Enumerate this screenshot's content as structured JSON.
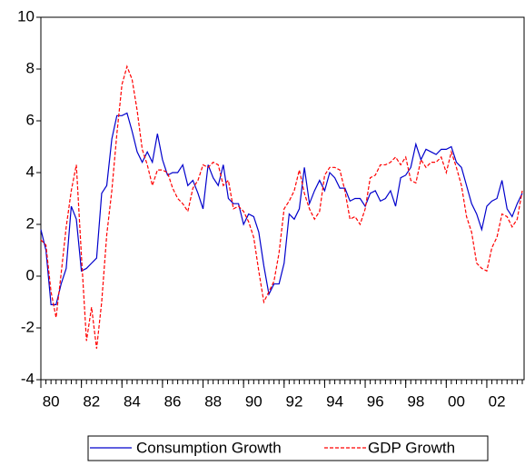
{
  "chart_data": {
    "type": "line",
    "x": [
      1980,
      1980.25,
      1980.5,
      1980.75,
      1981,
      1981.25,
      1981.5,
      1981.75,
      1982,
      1982.25,
      1982.5,
      1982.75,
      1983,
      1983.25,
      1983.5,
      1983.75,
      1984,
      1984.25,
      1984.5,
      1984.75,
      1985,
      1985.25,
      1985.5,
      1985.75,
      1986,
      1986.25,
      1986.5,
      1986.75,
      1987,
      1987.25,
      1987.5,
      1987.75,
      1988,
      1988.25,
      1988.5,
      1988.75,
      1989,
      1989.25,
      1989.5,
      1989.75,
      1990,
      1990.25,
      1990.5,
      1990.75,
      1991,
      1991.25,
      1991.5,
      1991.75,
      1992,
      1992.25,
      1992.5,
      1992.75,
      1993,
      1993.25,
      1993.5,
      1993.75,
      1994,
      1994.25,
      1994.5,
      1994.75,
      1995,
      1995.25,
      1995.5,
      1995.75,
      1996,
      1996.25,
      1996.5,
      1996.75,
      1997,
      1997.25,
      1997.5,
      1997.75,
      1998,
      1998.25,
      1998.5,
      1998.75,
      1999,
      1999.25,
      1999.5,
      1999.75,
      2000,
      2000.25,
      2000.5,
      2000.75,
      2001,
      2001.25,
      2001.5,
      2001.75,
      2002,
      2002.25,
      2002.5,
      2002.75,
      2003,
      2003.25,
      2003.5,
      2003.75
    ],
    "series": [
      {
        "name": "Consumption Growth",
        "color": "#0000cc",
        "dash": false,
        "values": [
          1.8,
          1.0,
          -1.1,
          -1.1,
          -0.3,
          0.3,
          2.7,
          2.2,
          0.2,
          0.3,
          0.5,
          0.7,
          3.2,
          3.5,
          5.3,
          6.2,
          6.2,
          6.3,
          5.6,
          4.8,
          4.4,
          4.8,
          4.4,
          5.5,
          4.5,
          3.9,
          4.0,
          4.0,
          4.3,
          3.5,
          3.7,
          3.2,
          2.6,
          4.3,
          3.8,
          3.5,
          4.3,
          3.0,
          2.8,
          2.8,
          2.0,
          2.4,
          2.3,
          1.7,
          0.4,
          -0.7,
          -0.3,
          -0.3,
          0.5,
          2.4,
          2.2,
          2.6,
          4.2,
          2.8,
          3.3,
          3.7,
          3.3,
          4.0,
          3.8,
          3.4,
          3.4,
          2.9,
          3.0,
          3.0,
          2.7,
          3.2,
          3.3,
          2.9,
          3.0,
          3.3,
          2.7,
          3.8,
          3.9,
          4.2,
          5.1,
          4.5,
          4.9,
          4.8,
          4.7,
          4.9,
          4.9,
          5.0,
          4.4,
          4.2,
          3.5,
          2.8,
          2.4,
          1.8,
          2.7,
          2.9,
          3.0,
          3.7,
          2.6,
          2.3,
          2.8,
          3.2
        ]
      },
      {
        "name": "GDP Growth",
        "color": "#ff0000",
        "dash": true,
        "values": [
          1.4,
          1.2,
          -0.6,
          -1.6,
          0.1,
          1.9,
          3.3,
          4.3,
          0.8,
          -2.5,
          -1.2,
          -2.8,
          -1.0,
          1.6,
          3.3,
          5.5,
          7.4,
          8.1,
          7.6,
          6.4,
          4.9,
          4.3,
          3.5,
          4.1,
          4.1,
          4.0,
          3.4,
          3.0,
          2.8,
          2.5,
          3.4,
          3.7,
          4.3,
          4.2,
          4.4,
          4.3,
          3.5,
          3.7,
          2.6,
          2.7,
          2.5,
          2.1,
          1.5,
          0.2,
          -1.0,
          -0.6,
          -0.2,
          0.9,
          2.6,
          2.9,
          3.3,
          4.1,
          3.2,
          2.6,
          2.2,
          2.5,
          3.9,
          4.2,
          4.2,
          4.1,
          3.3,
          2.2,
          2.3,
          2.0,
          2.6,
          3.8,
          3.9,
          4.3,
          4.3,
          4.4,
          4.6,
          4.3,
          4.6,
          3.7,
          3.6,
          4.5,
          4.2,
          4.4,
          4.4,
          4.6,
          4.0,
          4.8,
          4.2,
          3.5,
          2.3,
          1.7,
          0.5,
          0.3,
          0.2,
          1.1,
          1.5,
          2.4,
          2.3,
          1.9,
          2.2,
          3.3
        ]
      }
    ],
    "xlim": [
      1980,
      2003.75
    ],
    "xticks": [
      {
        "value": 1980,
        "label": "80"
      },
      {
        "value": 1982,
        "label": "82"
      },
      {
        "value": 1984,
        "label": "84"
      },
      {
        "value": 1986,
        "label": "86"
      },
      {
        "value": 1988,
        "label": "88"
      },
      {
        "value": 1990,
        "label": "90"
      },
      {
        "value": 1992,
        "label": "92"
      },
      {
        "value": 1994,
        "label": "94"
      },
      {
        "value": 1996,
        "label": "96"
      },
      {
        "value": 1998,
        "label": "98"
      },
      {
        "value": 2000,
        "label": "00"
      },
      {
        "value": 2002,
        "label": "02"
      }
    ],
    "ylim": [
      -4,
      10
    ],
    "yticks": [
      -4,
      -2,
      0,
      2,
      4,
      6,
      8,
      10
    ],
    "legend": "bottom"
  }
}
